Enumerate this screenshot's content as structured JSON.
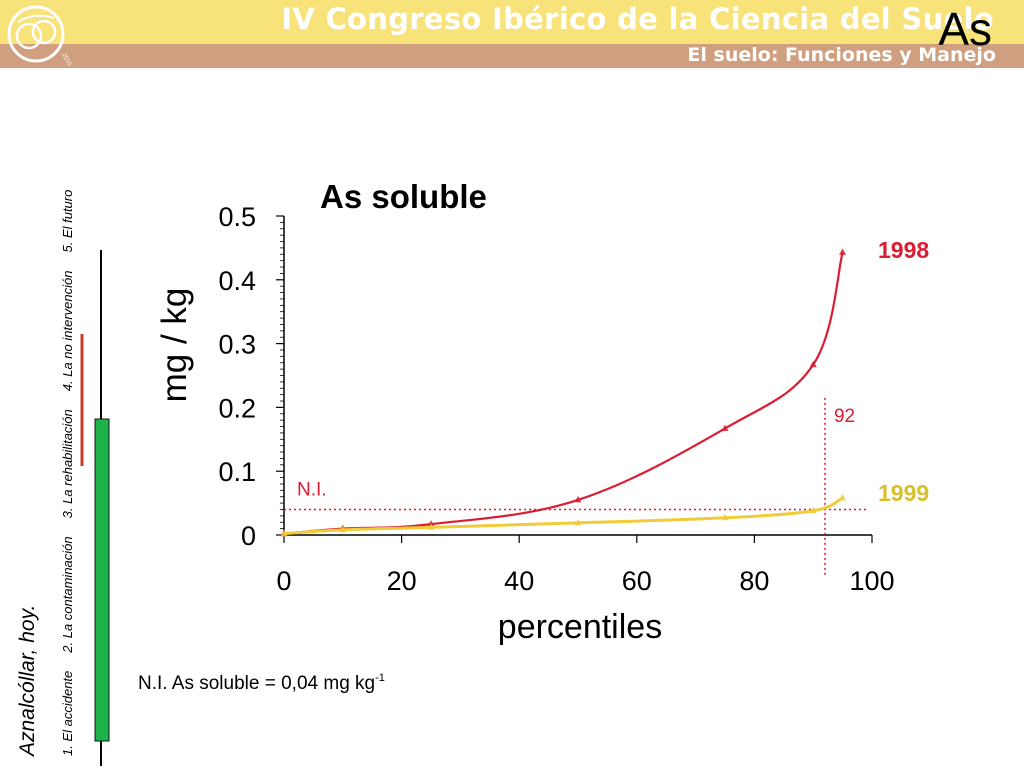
{
  "header": {
    "title": "IV Congreso Ibérico de la Ciencia del Suelo",
    "subtitle": "El suelo: Funciones y Manejo",
    "element": "As",
    "logo_year": "2010"
  },
  "sidebar": {
    "title": "Aznalcóllar, hoy.",
    "nav": [
      "1. El accidente",
      "2. La contaminación",
      "3. La rehabilitación",
      "4. La no intervención",
      "5. El futuro"
    ],
    "bar_colors": {
      "timeline": "#000000",
      "red": "#c83a2a",
      "green": "#1db34a"
    }
  },
  "footnote": {
    "text": "N.I. As soluble = 0,04 mg kg",
    "sup": "-1"
  },
  "chart_data": {
    "type": "line",
    "title": "As soluble",
    "xlabel": "percentiles",
    "ylabel": "mg / kg",
    "xlim": [
      0,
      100
    ],
    "ylim": [
      0,
      0.5
    ],
    "x_ticks": [
      "0",
      "20",
      "40",
      "60",
      "80",
      "100"
    ],
    "y_ticks": [
      "0",
      "0.1",
      "0.2",
      "0.3",
      "0.4",
      "0.5"
    ],
    "grid": false,
    "series": [
      {
        "name": "1998",
        "color": "#dc1c32",
        "x": [
          0,
          10,
          25,
          50,
          75,
          90,
          95
        ],
        "y": [
          0.002,
          0.01,
          0.017,
          0.055,
          0.167,
          0.267,
          0.443
        ]
      },
      {
        "name": "1999",
        "color": "#f2cb38",
        "label_color": "#d8c02a",
        "x": [
          0,
          10,
          25,
          50,
          75,
          90,
          95
        ],
        "y": [
          0.002,
          0.008,
          0.012,
          0.019,
          0.027,
          0.038,
          0.058
        ]
      }
    ],
    "reference_lines": [
      {
        "type": "horizontal",
        "label": "N.I.",
        "value": 0.04,
        "color": "#dc1c32"
      },
      {
        "type": "vertical",
        "label": "92",
        "value": 92,
        "color": "#dc1c32"
      }
    ]
  }
}
